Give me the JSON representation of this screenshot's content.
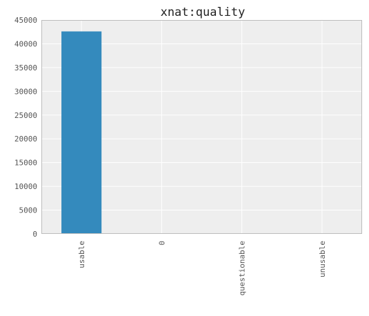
{
  "chart_data": {
    "type": "bar",
    "title": "xnat:quality",
    "categories": [
      "usable",
      "0",
      "questionable",
      "unusable"
    ],
    "values": [
      42600,
      60,
      8,
      4
    ],
    "ylim": [
      0,
      45000
    ],
    "yticks": [
      0,
      5000,
      10000,
      15000,
      20000,
      25000,
      30000,
      35000,
      40000,
      45000
    ],
    "xlabel": "",
    "ylabel": "",
    "grid": true,
    "colors": {
      "bar": "#348ABD",
      "plot_background": "#EEEEEE",
      "grid": "#FFFFFF",
      "frame": "#BCBCBC"
    }
  }
}
